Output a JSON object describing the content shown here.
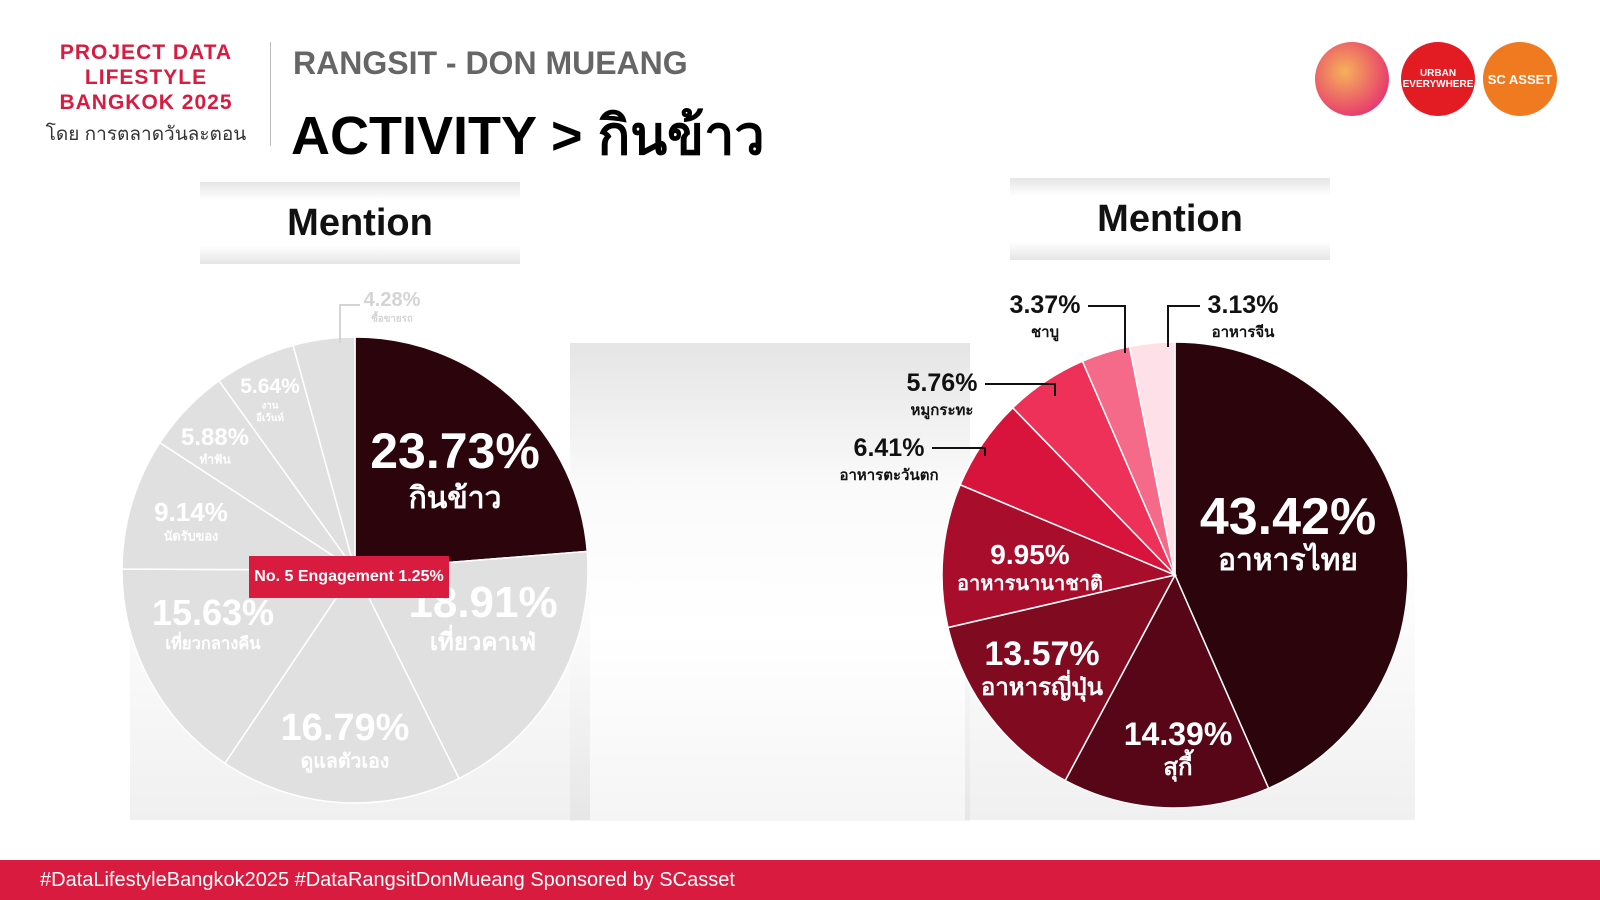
{
  "brand": {
    "lines": [
      "PROJECT DATA",
      "LIFESTYLE",
      "BANGKOK 2025"
    ],
    "sub": "โดย การตลาดวันละตอน"
  },
  "header": {
    "subtitle": "RANGSIT - DON MUEANG",
    "title": "ACTIVITY > กินข้าว"
  },
  "logos": [
    {
      "name": "brand-avatar",
      "text": ""
    },
    {
      "name": "urban-everywhere",
      "text": "URBAN EVERYWHERE"
    },
    {
      "name": "sc-asset",
      "text": "SC ASSET"
    }
  ],
  "mention_label_left": "Mention",
  "mention_label_right": "Mention",
  "engagement_badge": "No. 5 Engagement 1.25%",
  "footer_text": "#DataLifestyleBangkok2025 #DataRangsitDonMueang Sponsored by SCasset",
  "colors": {
    "brand_red": "#d81b3f",
    "highlight_slice": "#2b040c",
    "muted_slice": "#e0e0e0",
    "muted_text": "#ffffff"
  },
  "chart_data": [
    {
      "type": "pie",
      "title": "Mention",
      "highlight": "กินข้าว",
      "slices": [
        {
          "label": "กินข้าว",
          "pct_label": "23.73%",
          "value": 23.73
        },
        {
          "label": "เที่ยวคาเฟ่",
          "pct_label": "18.91%",
          "value": 18.91
        },
        {
          "label": "ดูแลตัวเอง",
          "pct_label": "16.79%",
          "value": 16.79
        },
        {
          "label": "เที่ยวกลางคืน",
          "pct_label": "15.63%",
          "value": 15.63
        },
        {
          "label": "นัดรับของ",
          "pct_label": "9.14%",
          "value": 9.14
        },
        {
          "label": "ทำฟัน",
          "pct_label": "5.88%",
          "value": 5.88
        },
        {
          "label": "งาน อีเว้นท์",
          "pct_label": "5.64%",
          "value": 5.64
        },
        {
          "label": "ซื้อขายรถ",
          "pct_label": "4.28%",
          "value": 4.28
        }
      ]
    },
    {
      "type": "pie",
      "title": "Mention",
      "slices": [
        {
          "label": "อาหารไทย",
          "pct_label": "43.42%",
          "value": 43.42,
          "color": "#2b040c"
        },
        {
          "label": "สุกี้",
          "pct_label": "14.39%",
          "value": 14.39,
          "color": "#560616"
        },
        {
          "label": "อาหารญี่ปุ่น",
          "pct_label": "13.57%",
          "value": 13.57,
          "color": "#800a20"
        },
        {
          "label": "อาหารนานาชาติ",
          "pct_label": "9.95%",
          "value": 9.95,
          "color": "#a80d2c"
        },
        {
          "label": "อาหารตะวันตก",
          "pct_label": "6.41%",
          "value": 6.41,
          "color": "#d9143c"
        },
        {
          "label": "หมูกระทะ",
          "pct_label": "5.76%",
          "value": 5.76,
          "color": "#ee3158"
        },
        {
          "label": "ชาบู",
          "pct_label": "3.37%",
          "value": 3.37,
          "color": "#f46a88"
        },
        {
          "label": "อาหารจีน",
          "pct_label": "3.13%",
          "value": 3.13,
          "color": "#fde0e8"
        }
      ]
    }
  ]
}
